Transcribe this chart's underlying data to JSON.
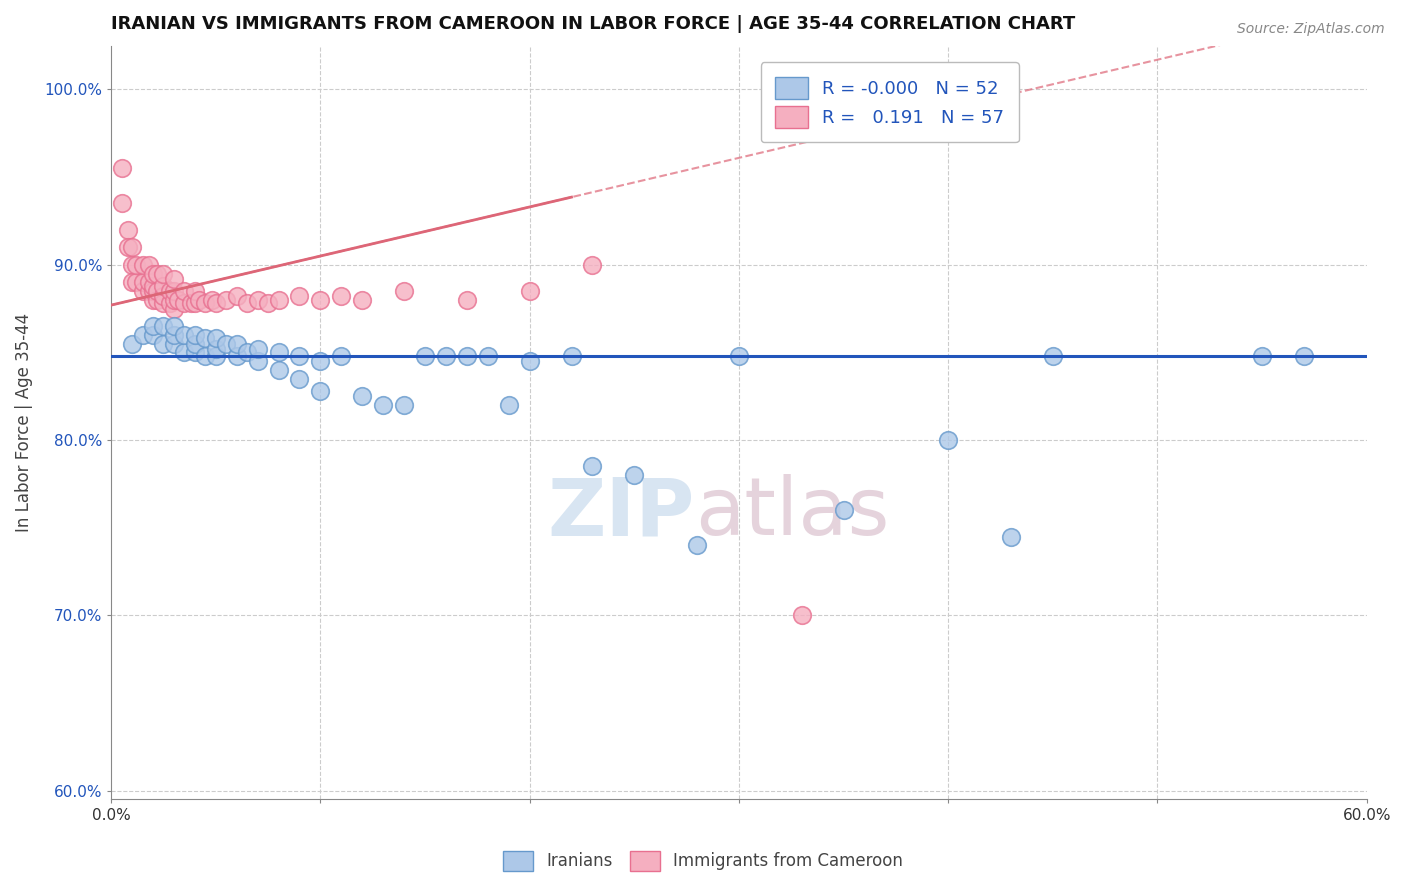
{
  "title": "IRANIAN VS IMMIGRANTS FROM CAMEROON IN LABOR FORCE | AGE 35-44 CORRELATION CHART",
  "source": "Source: ZipAtlas.com",
  "ylabel": "In Labor Force | Age 35-44",
  "xlim": [
    0.0,
    0.6
  ],
  "ylim": [
    0.595,
    1.025
  ],
  "yticks": [
    0.6,
    0.7,
    0.8,
    0.9,
    1.0
  ],
  "yticklabels": [
    "60.0%",
    "70.0%",
    "80.0%",
    "90.0%",
    "100.0%"
  ],
  "xtick_left_label": "0.0%",
  "xtick_right_label": "60.0%",
  "blue_R": "-0.000",
  "blue_N": "52",
  "pink_R": "0.191",
  "pink_N": "57",
  "blue_color": "#adc8e8",
  "pink_color": "#f5afc0",
  "blue_edge": "#6699cc",
  "pink_edge": "#e87090",
  "trend_blue_color": "#2255bb",
  "trend_pink_color": "#dd6677",
  "blue_x": [
    0.01,
    0.015,
    0.02,
    0.02,
    0.025,
    0.025,
    0.03,
    0.03,
    0.03,
    0.035,
    0.035,
    0.04,
    0.04,
    0.04,
    0.045,
    0.045,
    0.05,
    0.05,
    0.05,
    0.055,
    0.06,
    0.06,
    0.065,
    0.07,
    0.07,
    0.08,
    0.08,
    0.09,
    0.09,
    0.1,
    0.1,
    0.11,
    0.12,
    0.13,
    0.14,
    0.15,
    0.16,
    0.17,
    0.18,
    0.19,
    0.2,
    0.22,
    0.23,
    0.25,
    0.28,
    0.3,
    0.35,
    0.4,
    0.43,
    0.45,
    0.55,
    0.57
  ],
  "blue_y": [
    0.855,
    0.86,
    0.86,
    0.865,
    0.855,
    0.865,
    0.855,
    0.86,
    0.865,
    0.85,
    0.86,
    0.85,
    0.855,
    0.86,
    0.848,
    0.858,
    0.848,
    0.852,
    0.858,
    0.855,
    0.848,
    0.855,
    0.85,
    0.845,
    0.852,
    0.84,
    0.85,
    0.835,
    0.848,
    0.828,
    0.845,
    0.848,
    0.825,
    0.82,
    0.82,
    0.848,
    0.848,
    0.848,
    0.848,
    0.82,
    0.845,
    0.848,
    0.785,
    0.78,
    0.74,
    0.848,
    0.76,
    0.8,
    0.745,
    0.848,
    0.848,
    0.848
  ],
  "pink_x": [
    0.005,
    0.005,
    0.008,
    0.008,
    0.01,
    0.01,
    0.01,
    0.012,
    0.012,
    0.015,
    0.015,
    0.015,
    0.018,
    0.018,
    0.018,
    0.02,
    0.02,
    0.02,
    0.02,
    0.022,
    0.022,
    0.022,
    0.025,
    0.025,
    0.025,
    0.025,
    0.028,
    0.028,
    0.03,
    0.03,
    0.03,
    0.03,
    0.032,
    0.035,
    0.035,
    0.038,
    0.04,
    0.04,
    0.042,
    0.045,
    0.048,
    0.05,
    0.055,
    0.06,
    0.065,
    0.07,
    0.075,
    0.08,
    0.09,
    0.1,
    0.11,
    0.12,
    0.14,
    0.17,
    0.2,
    0.23,
    0.33
  ],
  "pink_y": [
    0.955,
    0.935,
    0.92,
    0.91,
    0.9,
    0.91,
    0.89,
    0.89,
    0.9,
    0.885,
    0.89,
    0.9,
    0.885,
    0.89,
    0.9,
    0.88,
    0.885,
    0.888,
    0.895,
    0.88,
    0.885,
    0.895,
    0.878,
    0.882,
    0.888,
    0.895,
    0.878,
    0.885,
    0.875,
    0.88,
    0.885,
    0.892,
    0.88,
    0.878,
    0.885,
    0.878,
    0.878,
    0.885,
    0.88,
    0.878,
    0.88,
    0.878,
    0.88,
    0.882,
    0.878,
    0.88,
    0.878,
    0.88,
    0.882,
    0.88,
    0.882,
    0.88,
    0.885,
    0.88,
    0.885,
    0.9,
    0.7
  ],
  "blue_trend_y_intercept": 0.848,
  "pink_trend_slope": 0.28,
  "pink_trend_intercept": 0.877
}
